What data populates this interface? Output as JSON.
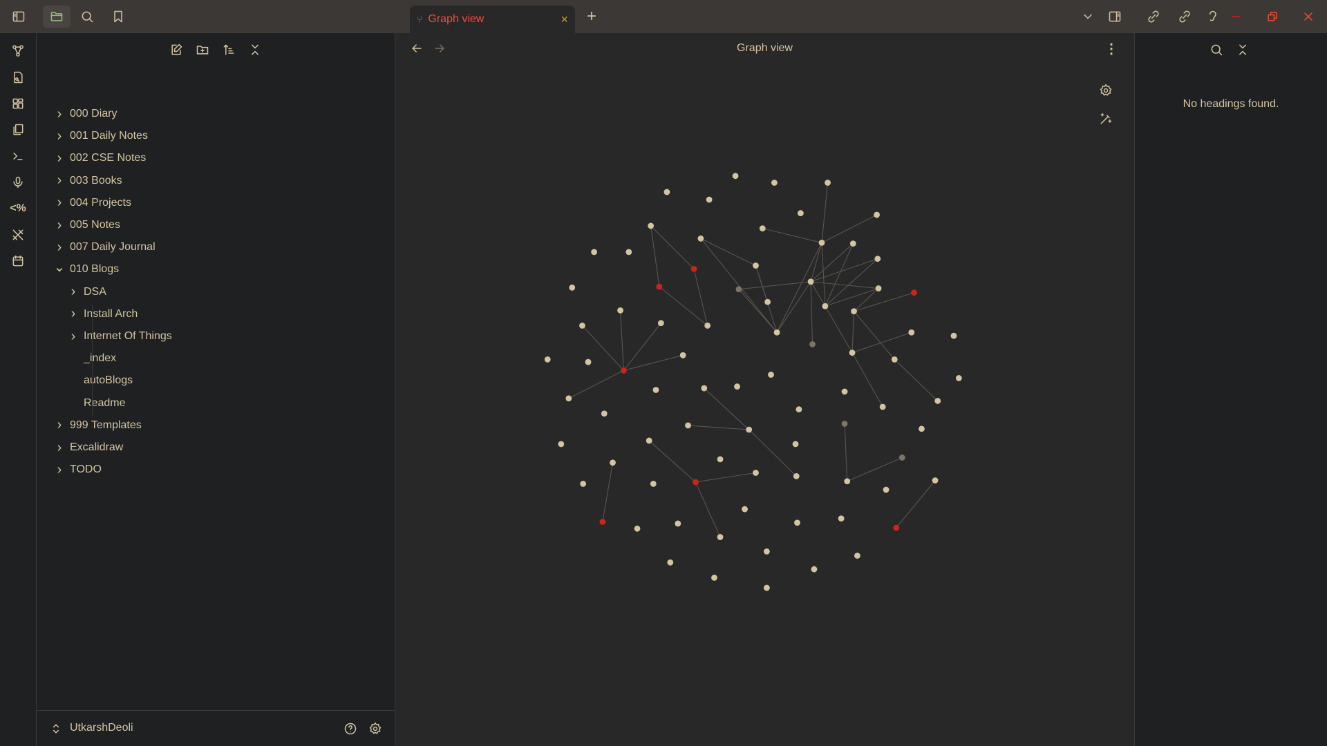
{
  "titlebar": {
    "tab_label": "Graph view",
    "icons": [
      "sidebar-toggle-icon",
      "folder-icon",
      "search-icon",
      "bookmark-icon"
    ],
    "right_icons": [
      "chevron-down-icon",
      "right-sidebar-icon",
      "backlinks-icon",
      "outgoing-links-icon",
      "ear-icon",
      "minimize-icon",
      "restore-icon",
      "close-icon"
    ]
  },
  "ribbon": {
    "icons": [
      "graph-icon",
      "file-search-icon",
      "dashboard-icon",
      "copy-icon",
      "terminal-icon",
      "microphone-icon",
      "templater-icon",
      "excalidraw-icon",
      "calendar-icon"
    ]
  },
  "explorer": {
    "toolbar": [
      "new-note-icon",
      "new-folder-icon",
      "sort-icon",
      "collapse-all-icon"
    ],
    "items": [
      {
        "label": "000 Diary",
        "level": 0,
        "type": "folder",
        "expanded": false
      },
      {
        "label": "001 Daily Notes",
        "level": 0,
        "type": "folder",
        "expanded": false
      },
      {
        "label": "002 CSE Notes",
        "level": 0,
        "type": "folder",
        "expanded": false
      },
      {
        "label": "003 Books",
        "level": 0,
        "type": "folder",
        "expanded": false
      },
      {
        "label": "004 Projects",
        "level": 0,
        "type": "folder",
        "expanded": false
      },
      {
        "label": "005 Notes",
        "level": 0,
        "type": "folder",
        "expanded": false
      },
      {
        "label": "007 Daily Journal",
        "level": 0,
        "type": "folder",
        "expanded": false
      },
      {
        "label": "010 Blogs",
        "level": 0,
        "type": "folder",
        "expanded": true
      },
      {
        "label": "DSA",
        "level": 1,
        "type": "folder",
        "expanded": false
      },
      {
        "label": "Install Arch",
        "level": 1,
        "type": "folder",
        "expanded": false
      },
      {
        "label": "Internet Of Things",
        "level": 1,
        "type": "folder",
        "expanded": false
      },
      {
        "label": "_index",
        "level": 1,
        "type": "file"
      },
      {
        "label": "autoBlogs",
        "level": 1,
        "type": "file"
      },
      {
        "label": "Readme",
        "level": 1,
        "type": "file"
      },
      {
        "label": "999 Templates",
        "level": 0,
        "type": "folder",
        "expanded": false
      },
      {
        "label": "Excalidraw",
        "level": 0,
        "type": "folder",
        "expanded": false
      },
      {
        "label": "TODO",
        "level": 0,
        "type": "folder",
        "expanded": false
      }
    ],
    "vault_name": "UtkarshDeoli"
  },
  "main": {
    "title": "Graph view"
  },
  "outline": {
    "empty_message": "No headings found."
  },
  "colors": {
    "accent": "#fb4934",
    "node": "#d5c4a1",
    "node_unresolved": "#7c7466",
    "node_red": "#cc241d",
    "link": "#5a5550",
    "text": "#d5c4a1"
  }
}
